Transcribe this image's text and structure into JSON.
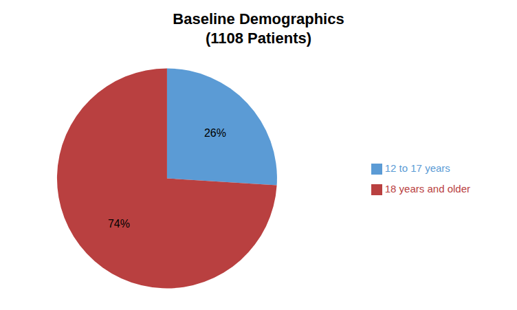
{
  "chart_data": {
    "type": "pie",
    "title": "Baseline Demographics\n(1108 Patients)",
    "categories": [
      "12 to 17 years",
      "18 years and older"
    ],
    "values": [
      26,
      74
    ],
    "value_labels": [
      "26%",
      "74%"
    ],
    "colors": [
      "#5B9BD5",
      "#B94040"
    ],
    "data_labels": true,
    "legend": "right"
  }
}
